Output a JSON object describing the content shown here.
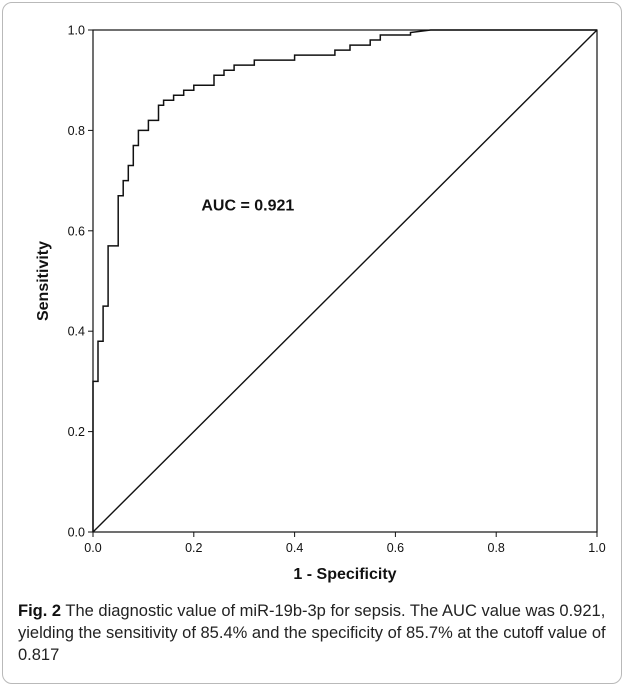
{
  "chart_data": {
    "type": "line",
    "title": "",
    "xlabel": "1 - Specificity",
    "ylabel": "Sensitivity",
    "xlim": [
      0,
      1
    ],
    "ylim": [
      0,
      1
    ],
    "x_ticks": [
      "0.0",
      "0.2",
      "0.4",
      "0.6",
      "0.8",
      "1.0"
    ],
    "y_ticks": [
      "0.0",
      "0.2",
      "0.4",
      "0.6",
      "0.8",
      "1.0"
    ],
    "grid": false,
    "annotation": "AUC = 0.921",
    "series": [
      {
        "x": [
          0,
          0,
          0.01,
          0.01,
          0.02,
          0.02,
          0.03,
          0.03,
          0.05,
          0.05,
          0.06,
          0.06,
          0.07,
          0.07,
          0.08,
          0.08,
          0.09,
          0.09,
          0.11,
          0.11,
          0.13,
          0.13,
          0.14,
          0.14,
          0.16,
          0.16,
          0.18,
          0.18,
          0.2,
          0.2,
          0.24,
          0.24,
          0.26,
          0.26,
          0.28,
          0.28,
          0.32,
          0.32,
          0.4,
          0.4,
          0.48,
          0.48,
          0.51,
          0.51,
          0.55,
          0.55,
          0.57,
          0.57,
          0.63,
          0.63,
          0.67,
          1.0
        ],
        "y": [
          0,
          0.3,
          0.3,
          0.38,
          0.38,
          0.45,
          0.45,
          0.57,
          0.57,
          0.67,
          0.67,
          0.7,
          0.7,
          0.73,
          0.73,
          0.77,
          0.77,
          0.8,
          0.8,
          0.82,
          0.82,
          0.85,
          0.85,
          0.86,
          0.86,
          0.87,
          0.87,
          0.88,
          0.88,
          0.89,
          0.89,
          0.91,
          0.91,
          0.92,
          0.92,
          0.93,
          0.93,
          0.94,
          0.94,
          0.95,
          0.95,
          0.96,
          0.96,
          0.97,
          0.97,
          0.98,
          0.98,
          0.99,
          0.99,
          0.995,
          1.0,
          1.0
        ]
      },
      {
        "x": [
          0,
          1
        ],
        "y": [
          0,
          1
        ]
      }
    ]
  },
  "caption": {
    "label": "Fig. 2",
    "text": "The diagnostic value of miR-19b-3p for sepsis. The AUC value was 0.921, yielding the sensitivity of 85.4% and the specificity of 85.7% at the cutoff value of 0.817"
  }
}
